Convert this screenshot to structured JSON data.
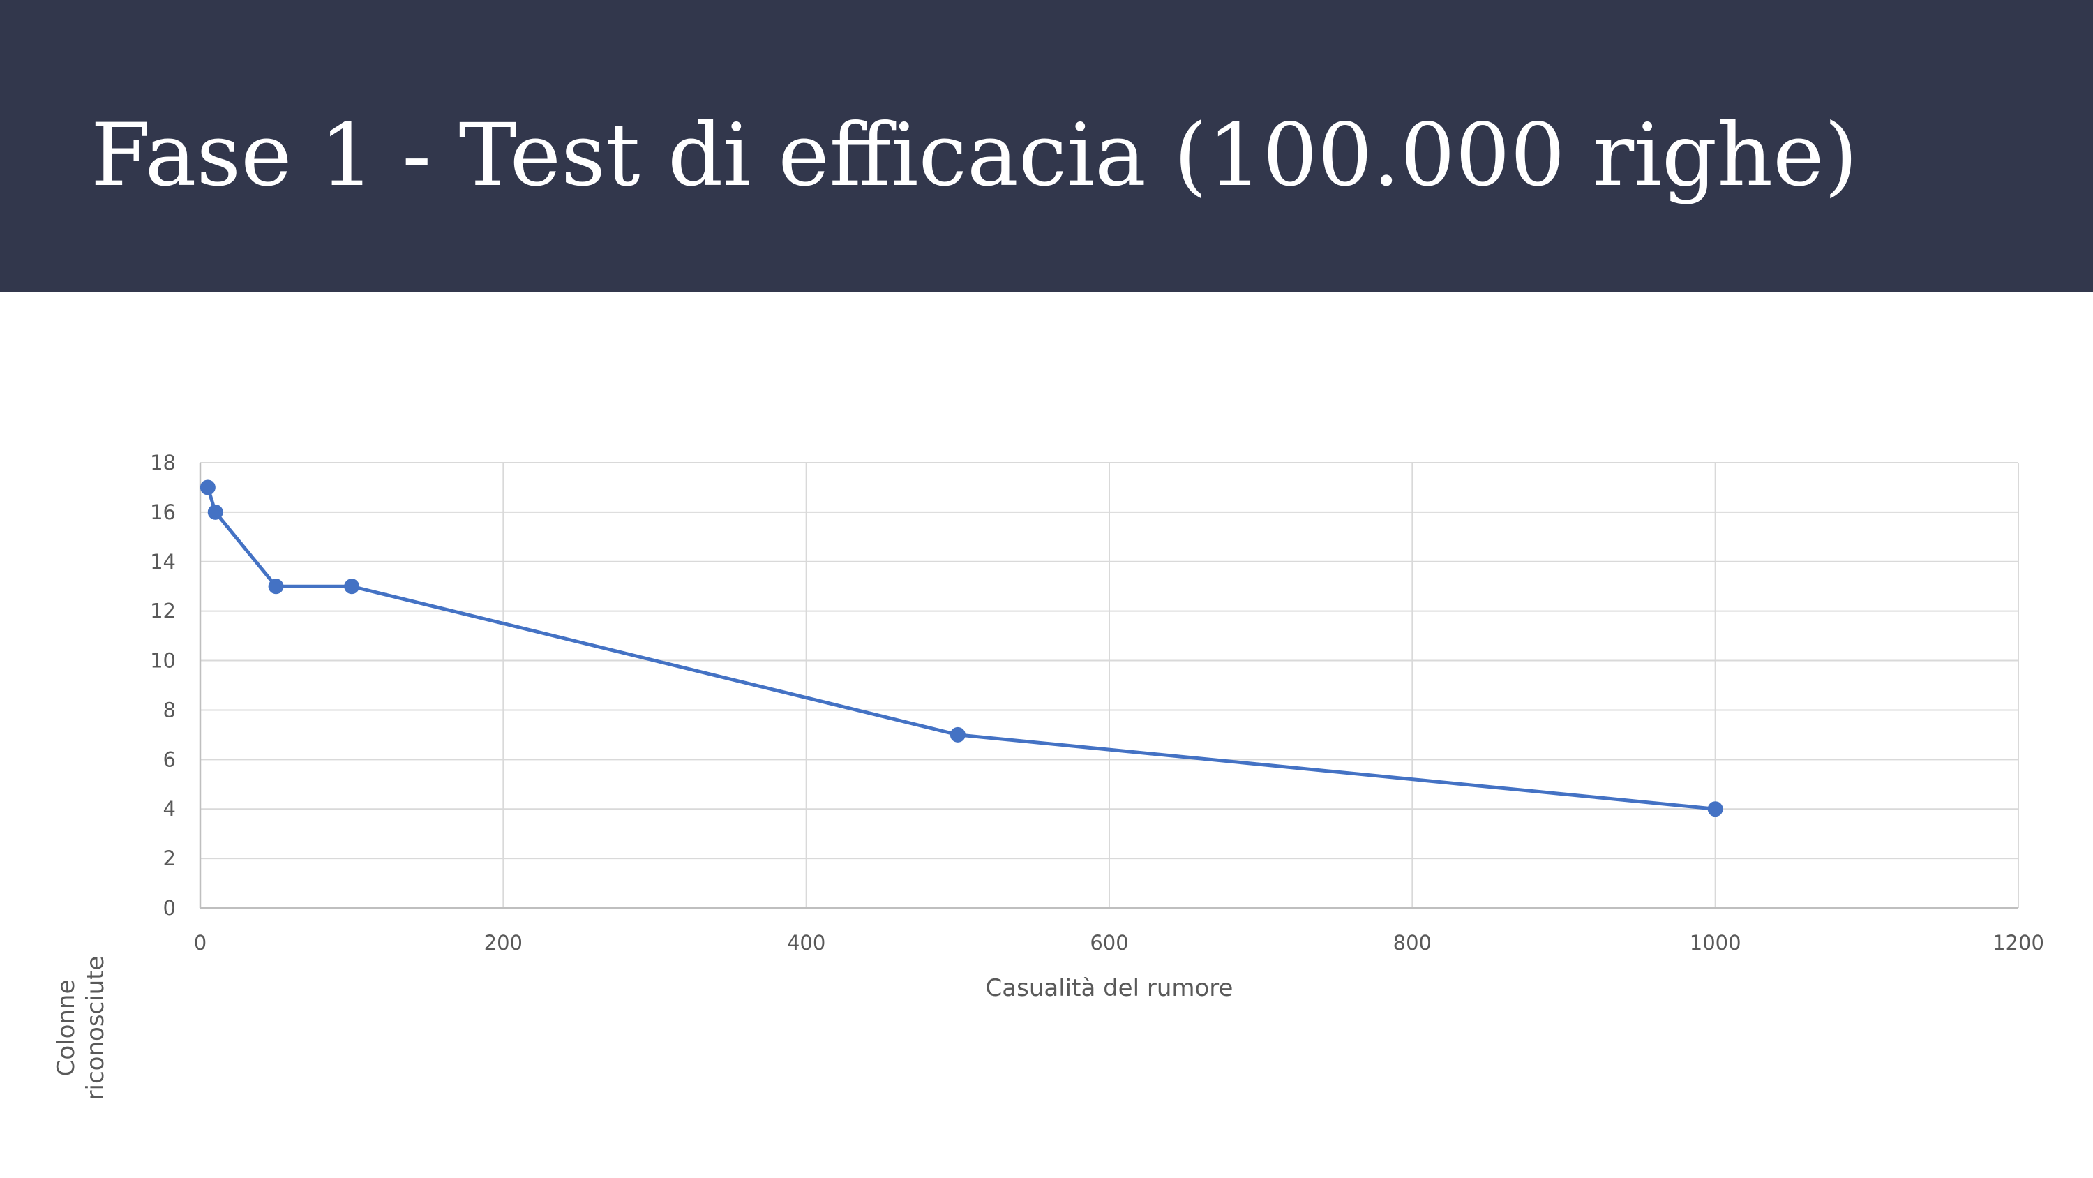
{
  "slide": {
    "title": "Fase 1 - Test di efficacia (100.000 righe)",
    "header_color": "#32374c"
  },
  "chart_data": {
    "type": "line",
    "x": [
      5,
      10,
      50,
      100,
      500,
      1000
    ],
    "series": [
      {
        "values": [
          17,
          16,
          13,
          13,
          7,
          4
        ],
        "color": "#4472c4"
      }
    ],
    "xlabel": "Casualità del rumore",
    "ylabel_lines": [
      "Colonne",
      "riconosciute"
    ],
    "xlim": [
      0,
      1200
    ],
    "ylim": [
      0,
      18
    ],
    "x_ticks": [
      "0",
      "200",
      "400",
      "600",
      "800",
      "1000",
      "1200"
    ],
    "y_ticks": [
      "0",
      "2",
      "4",
      "6",
      "8",
      "10",
      "12",
      "14",
      "16",
      "18"
    ],
    "grid": true,
    "legend": "none"
  }
}
